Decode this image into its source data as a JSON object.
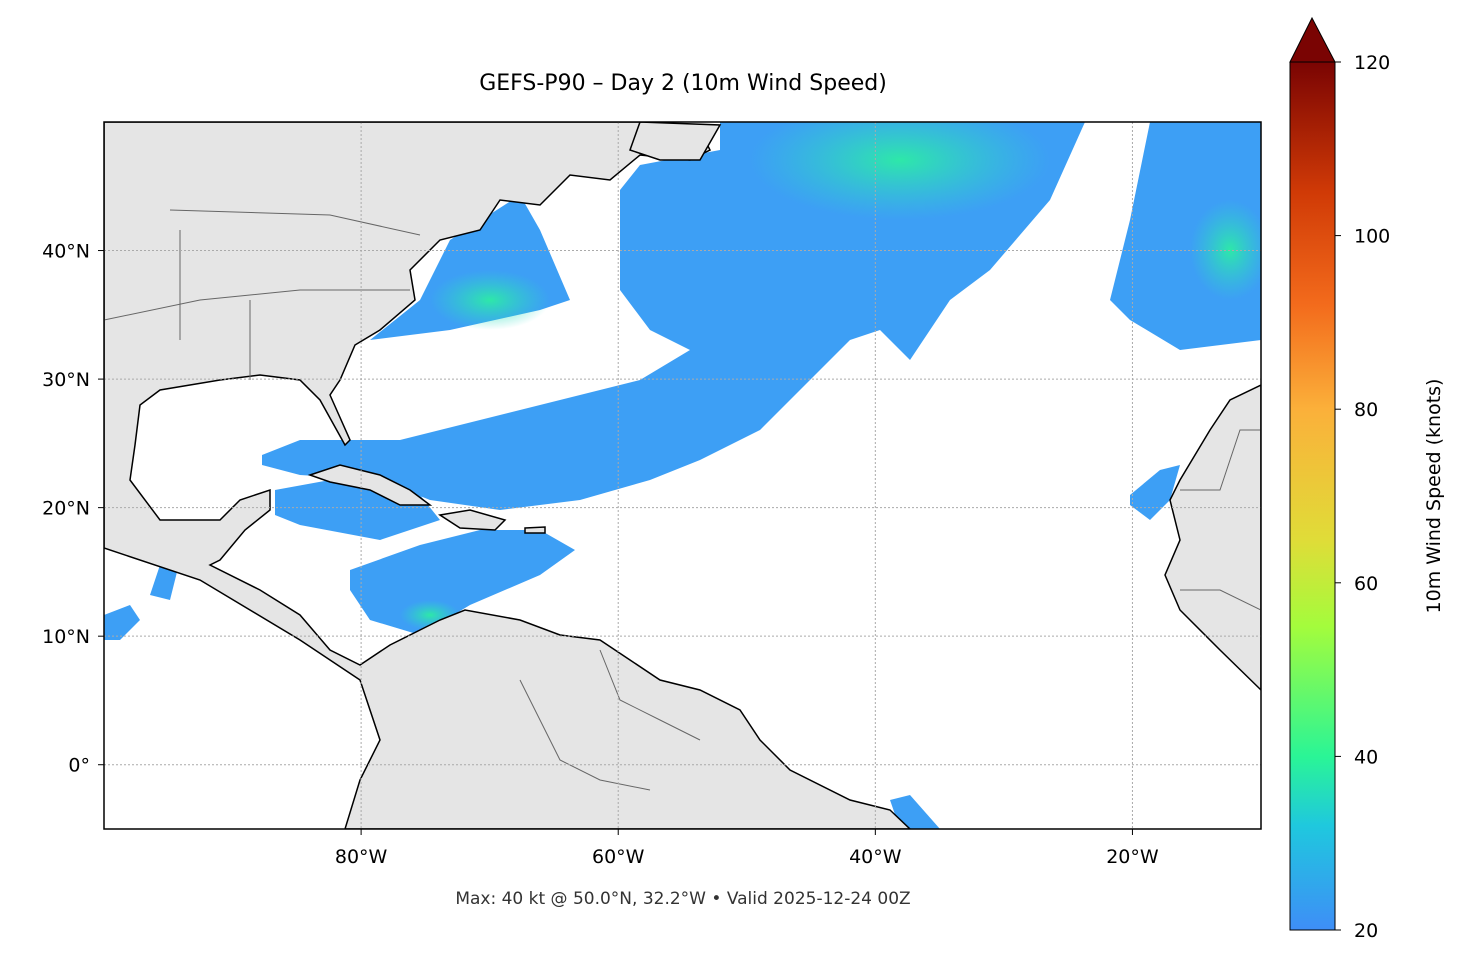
{
  "chart_data": {
    "type": "map",
    "title": "GEFS-P90 – Day 2 (10m Wind Speed)",
    "xlim": [
      -100,
      -10
    ],
    "ylim": [
      -5,
      50
    ],
    "xticks": [
      {
        "value": -80,
        "label": "80°W"
      },
      {
        "value": -60,
        "label": "60°W"
      },
      {
        "value": -40,
        "label": "40°W"
      },
      {
        "value": -20,
        "label": "20°W"
      }
    ],
    "yticks": [
      {
        "value": 0,
        "label": "0°"
      },
      {
        "value": 10,
        "label": "10°N"
      },
      {
        "value": 20,
        "label": "20°N"
      },
      {
        "value": 30,
        "label": "30°N"
      },
      {
        "value": 40,
        "label": "40°N"
      }
    ],
    "grid": true,
    "footer": "Max: 40 kt @ 50.0°N, 32.2°W • Valid 2025-12-24 00Z",
    "colorbar": {
      "label": "10m Wind Speed (knots)",
      "lim": [
        20,
        120
      ],
      "ticks": [
        20,
        40,
        60,
        80,
        100,
        120
      ]
    }
  }
}
